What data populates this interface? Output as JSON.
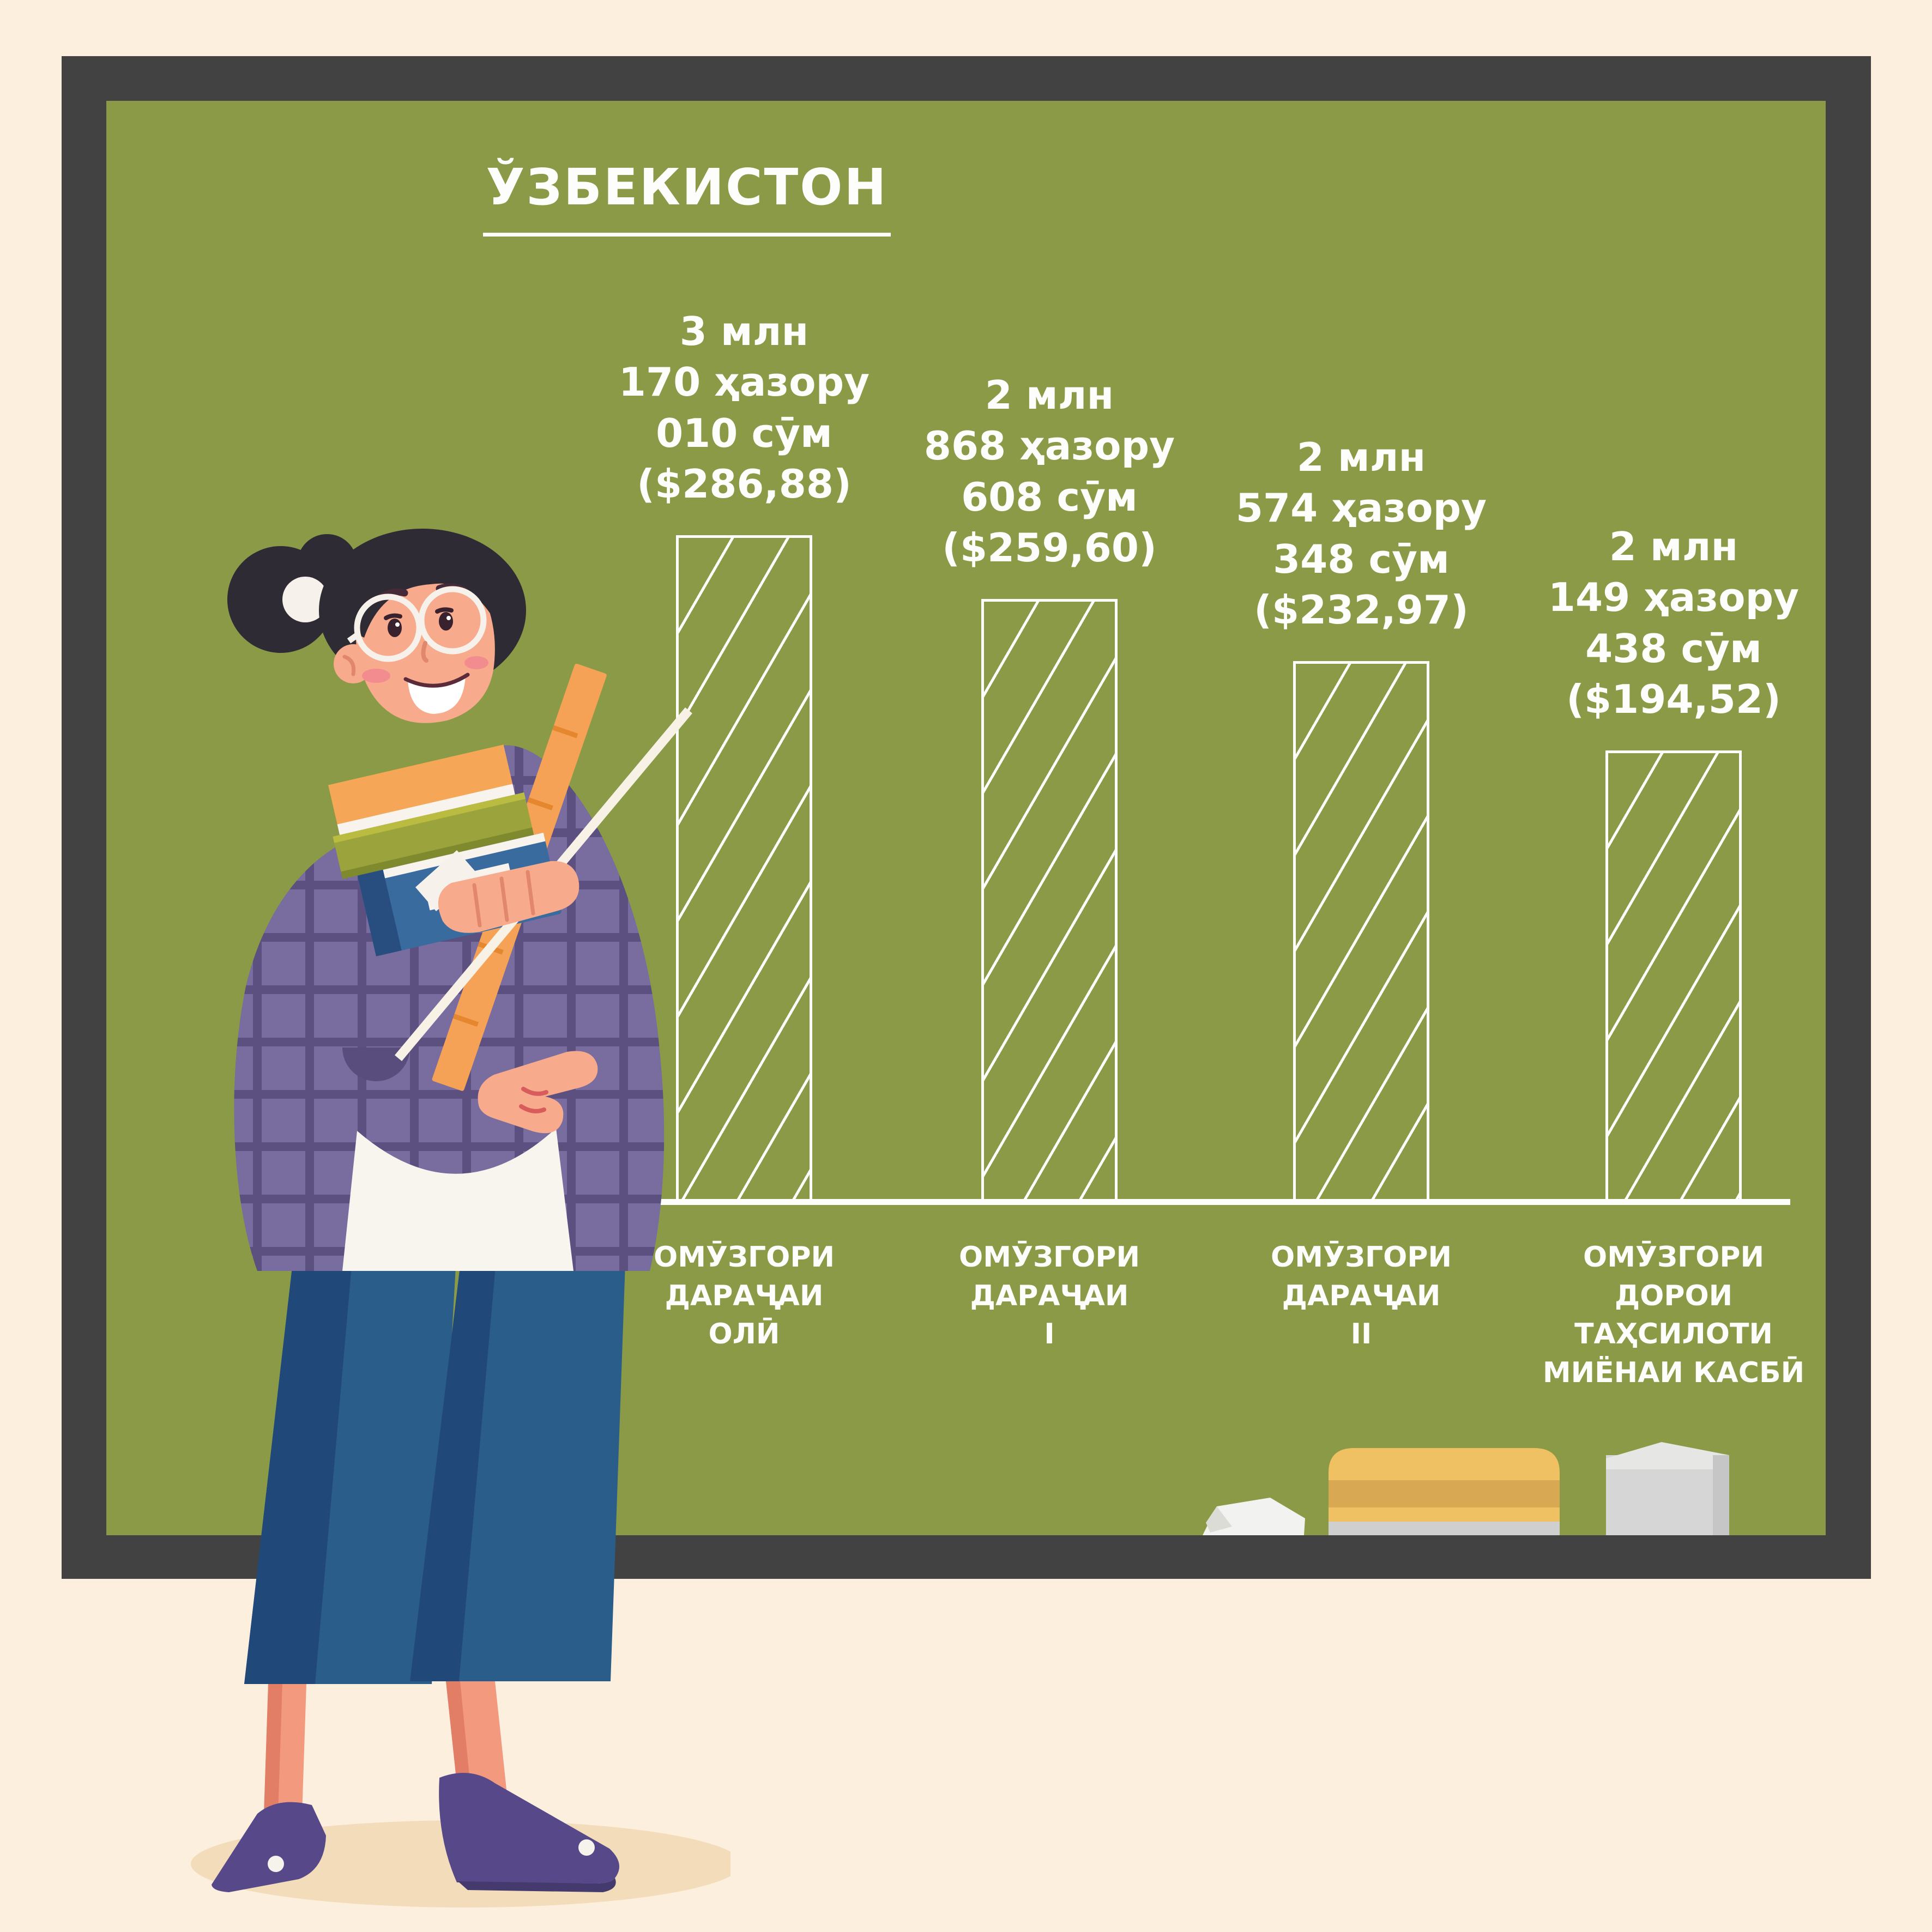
{
  "board": {
    "title": "ЎЗБЕКИСТОН"
  },
  "bars": [
    {
      "value_label": "3 млн\n170 ҳазору\n010 сӯм\n($286,88)",
      "category_label": "ОМӮЗГОРИ\nДАРАҶАИ\nОЛӢ",
      "value_som": 3170010,
      "value_usd": "$286,88"
    },
    {
      "value_label": "2 млн\n868 ҳазору\n608 сӯм\n($259,60)",
      "category_label": "ОМӮЗГОРИ\nДАРАҶАИ\nI",
      "value_som": 2868608,
      "value_usd": "$259,60"
    },
    {
      "value_label": "2 млн\n574 ҳазору\n348 сӯм\n($232,97)",
      "category_label": "ОМӮЗГОРИ\nДАРАҶАИ\nII",
      "value_som": 2574348,
      "value_usd": "$232,97"
    },
    {
      "value_label": "2 млн\n149 ҳазору\n438 сӯм\n($194,52)",
      "category_label": "ОМӮЗГОРИ\nДОРОИ\nТАҲСИЛОТИ\nМИЁНАИ КАСБӢ",
      "value_som": 2149438,
      "value_usd": "$194,52"
    }
  ],
  "chart_data": {
    "type": "bar",
    "title": "ЎЗБЕКИСТОН",
    "categories": [
      "ОМӮЗГОРИ ДАРАҶАИ ОЛӢ",
      "ОМӮЗГОРИ ДАРАҶАИ I",
      "ОМӮЗГОРИ ДАРАҶАИ II",
      "ОМӮЗГОРИ ДОРОИ ТАҲСИЛОТИ МИЁНАИ КАСБӢ"
    ],
    "values": [
      3170010,
      2868608,
      2574348,
      2149438
    ],
    "unit": "сӯм",
    "usd_equivalents": [
      "$286,88",
      "$259,60",
      "$232,97",
      "$194,52"
    ],
    "ylim": [
      0,
      3170010
    ],
    "grid": false,
    "legend": null,
    "bar_style": "white-outline rectangles with diagonal chalk hatching on green chalkboard",
    "xlabel": "",
    "ylabel": ""
  },
  "icons": {
    "teacher": "teacher-with-books-ruler-and-pointer",
    "paper": "folded-paper-sheets",
    "eraser": "chalkboard-eraser",
    "chalk": "chalk-stick",
    "pointer": "pointer-stick"
  },
  "colors": {
    "background": "#FCEFDE",
    "frame": "#424242",
    "board": "#8A9A47",
    "chalk_text": "#FDFDFB",
    "eraser_yellow": "#EFC163",
    "eraser_band": "#D8A952",
    "eraser_base": "#CFCFCF",
    "chalk_stick": "#D6D6D6",
    "jacket": "#786D9E",
    "pants": "#2B5D8B",
    "shadow": "#F2DCBA"
  }
}
